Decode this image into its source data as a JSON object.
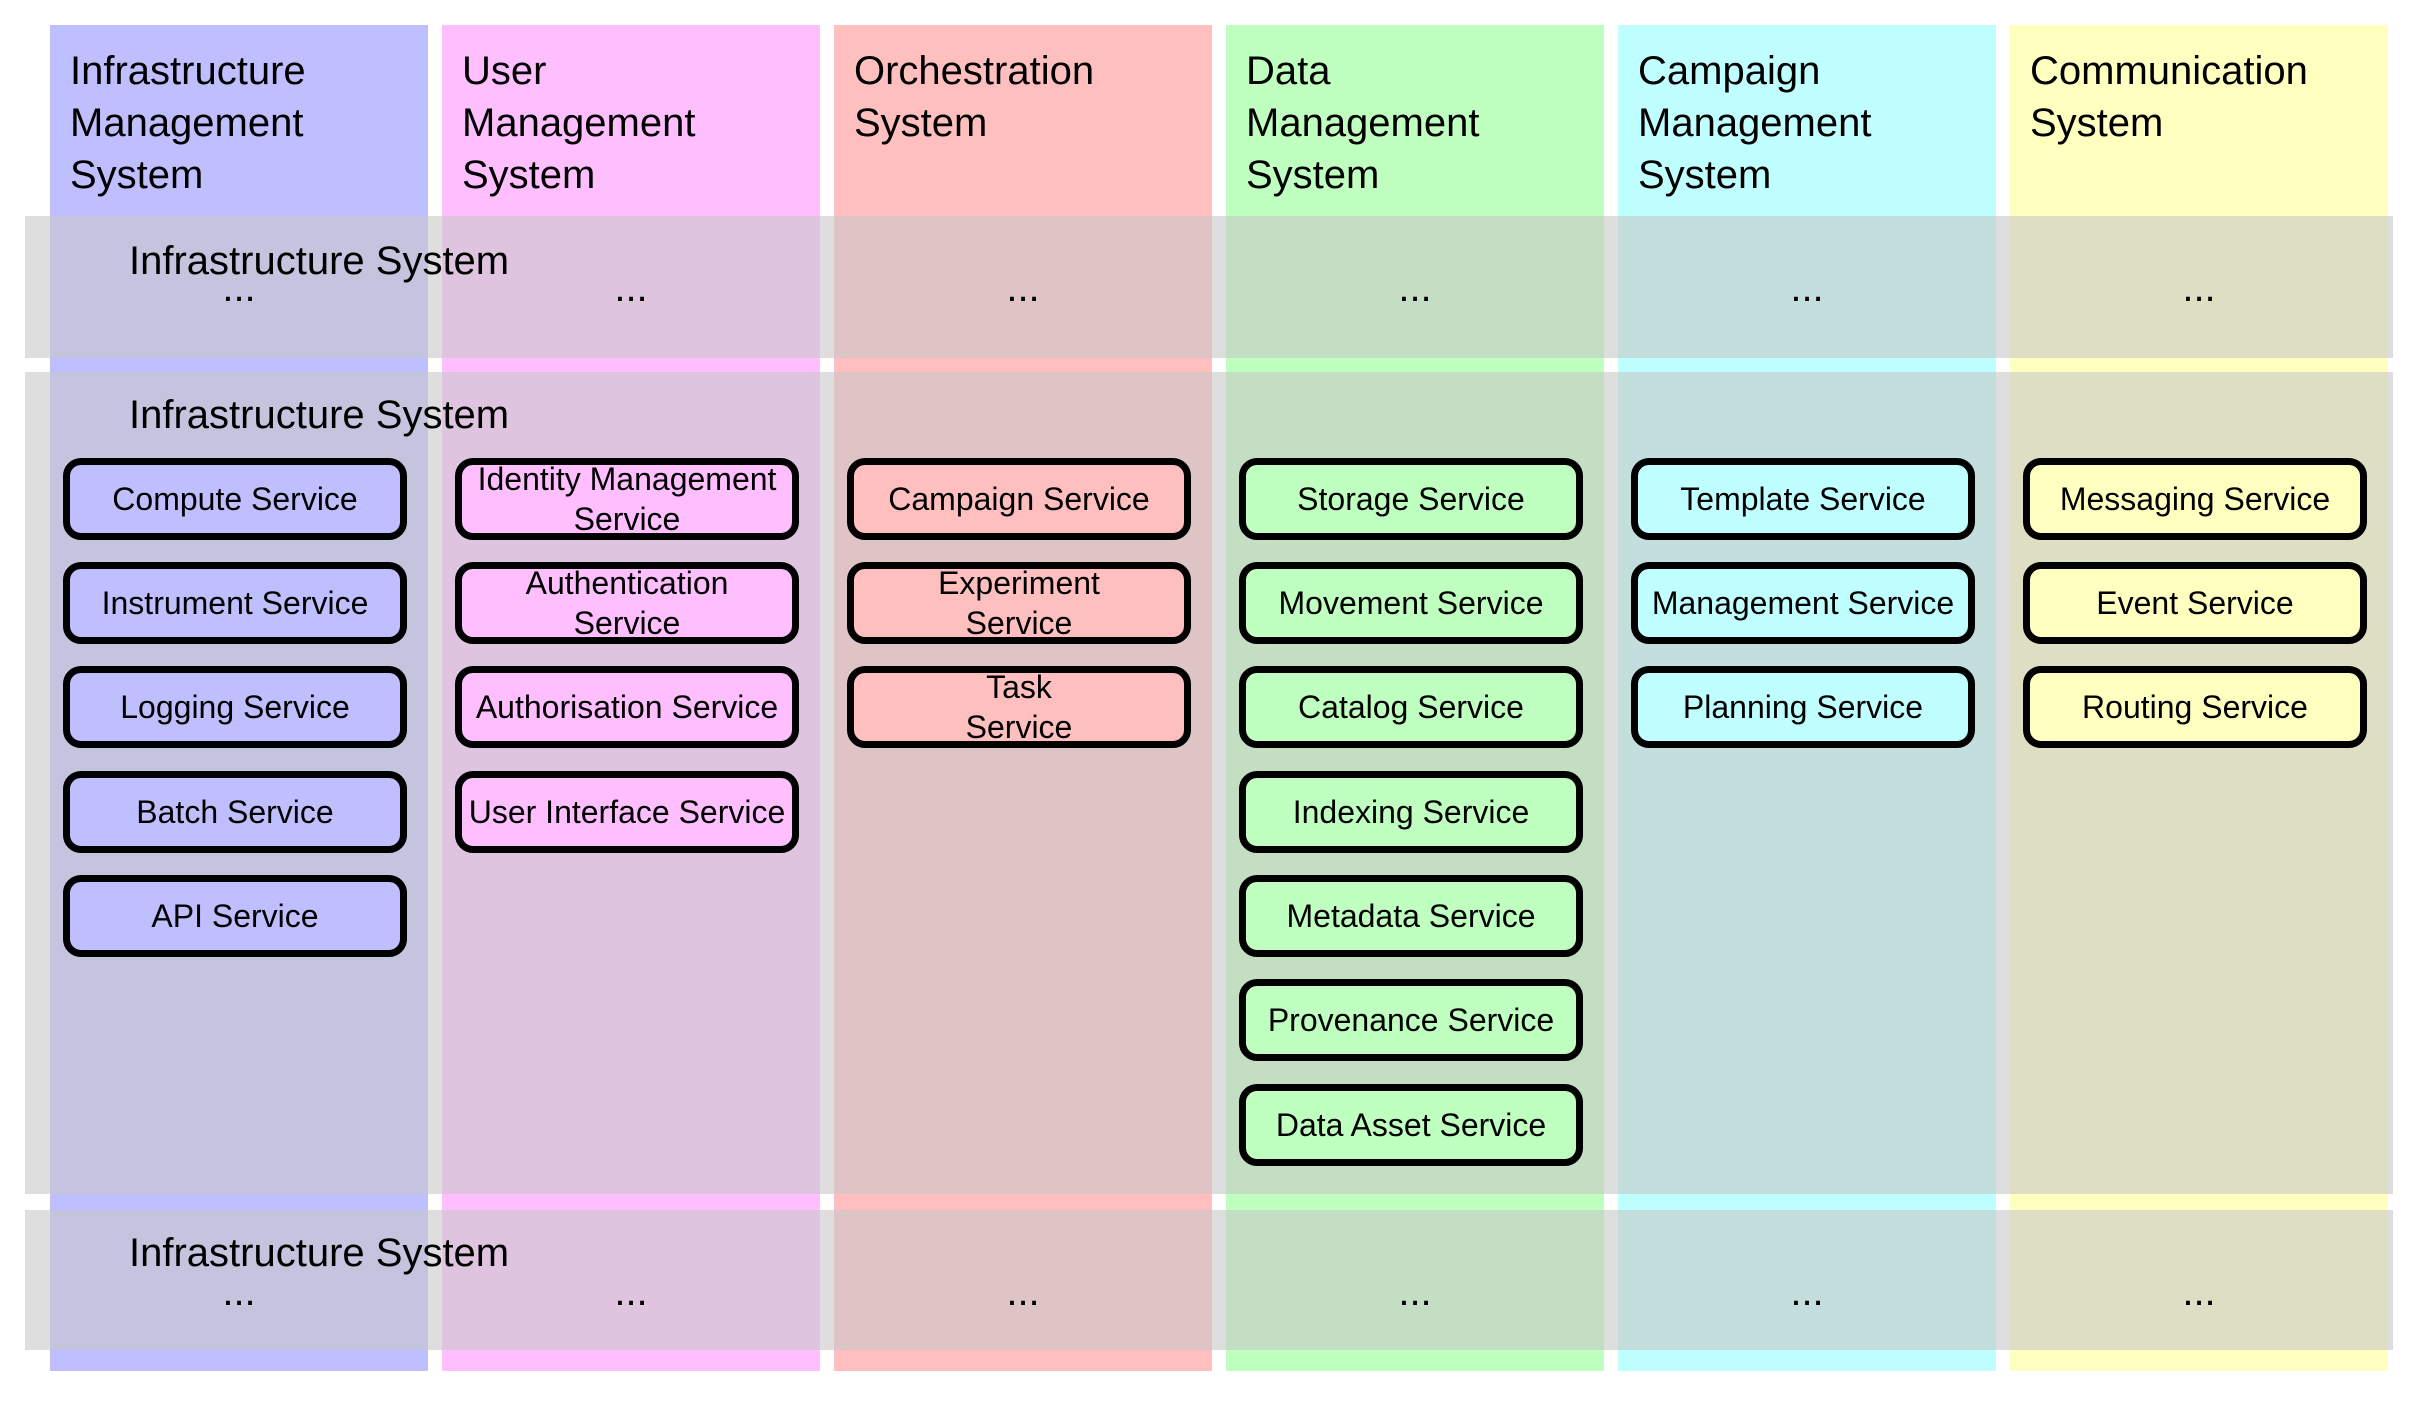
{
  "columns": [
    {
      "title": "Infrastructure\nManagement\nSystem",
      "color": "#bfbfff",
      "services": [
        "Compute Service",
        "Instrument Service",
        "Logging Service",
        "Batch Service",
        "API Service"
      ]
    },
    {
      "title": "User\nManagement\nSystem",
      "color": "#ffbfff",
      "services": [
        "Identity Management\nService",
        "Authentication\nService",
        "Authorisation Service",
        "User Interface Service"
      ]
    },
    {
      "title": "Orchestration\nSystem",
      "color": "#ffbfbf",
      "services": [
        "Campaign Service",
        "Experiment\nService",
        "Task\nService"
      ]
    },
    {
      "title": "Data\nManagement\nSystem",
      "color": "#bfffbf",
      "services": [
        "Storage Service",
        "Movement Service",
        "Catalog Service",
        "Indexing Service",
        "Metadata Service",
        "Provenance Service",
        "Data Asset Service"
      ]
    },
    {
      "title": "Campaign\nManagement\nSystem",
      "color": "#bfffff",
      "services": [
        "Template Service",
        "Management Service",
        "Planning Service"
      ]
    },
    {
      "title": "Communication\nSystem",
      "color": "#ffffbf",
      "services": [
        "Messaging Service",
        "Event Service",
        "Routing Service"
      ]
    }
  ],
  "layers": [
    {
      "title": "Infrastructure System",
      "ellipsis": "..."
    },
    {
      "title": "Infrastructure System"
    },
    {
      "title": "Infrastructure System",
      "ellipsis": "..."
    }
  ],
  "colors": {
    "service_border": "#000000",
    "layer_band": "#c8c8c8"
  }
}
